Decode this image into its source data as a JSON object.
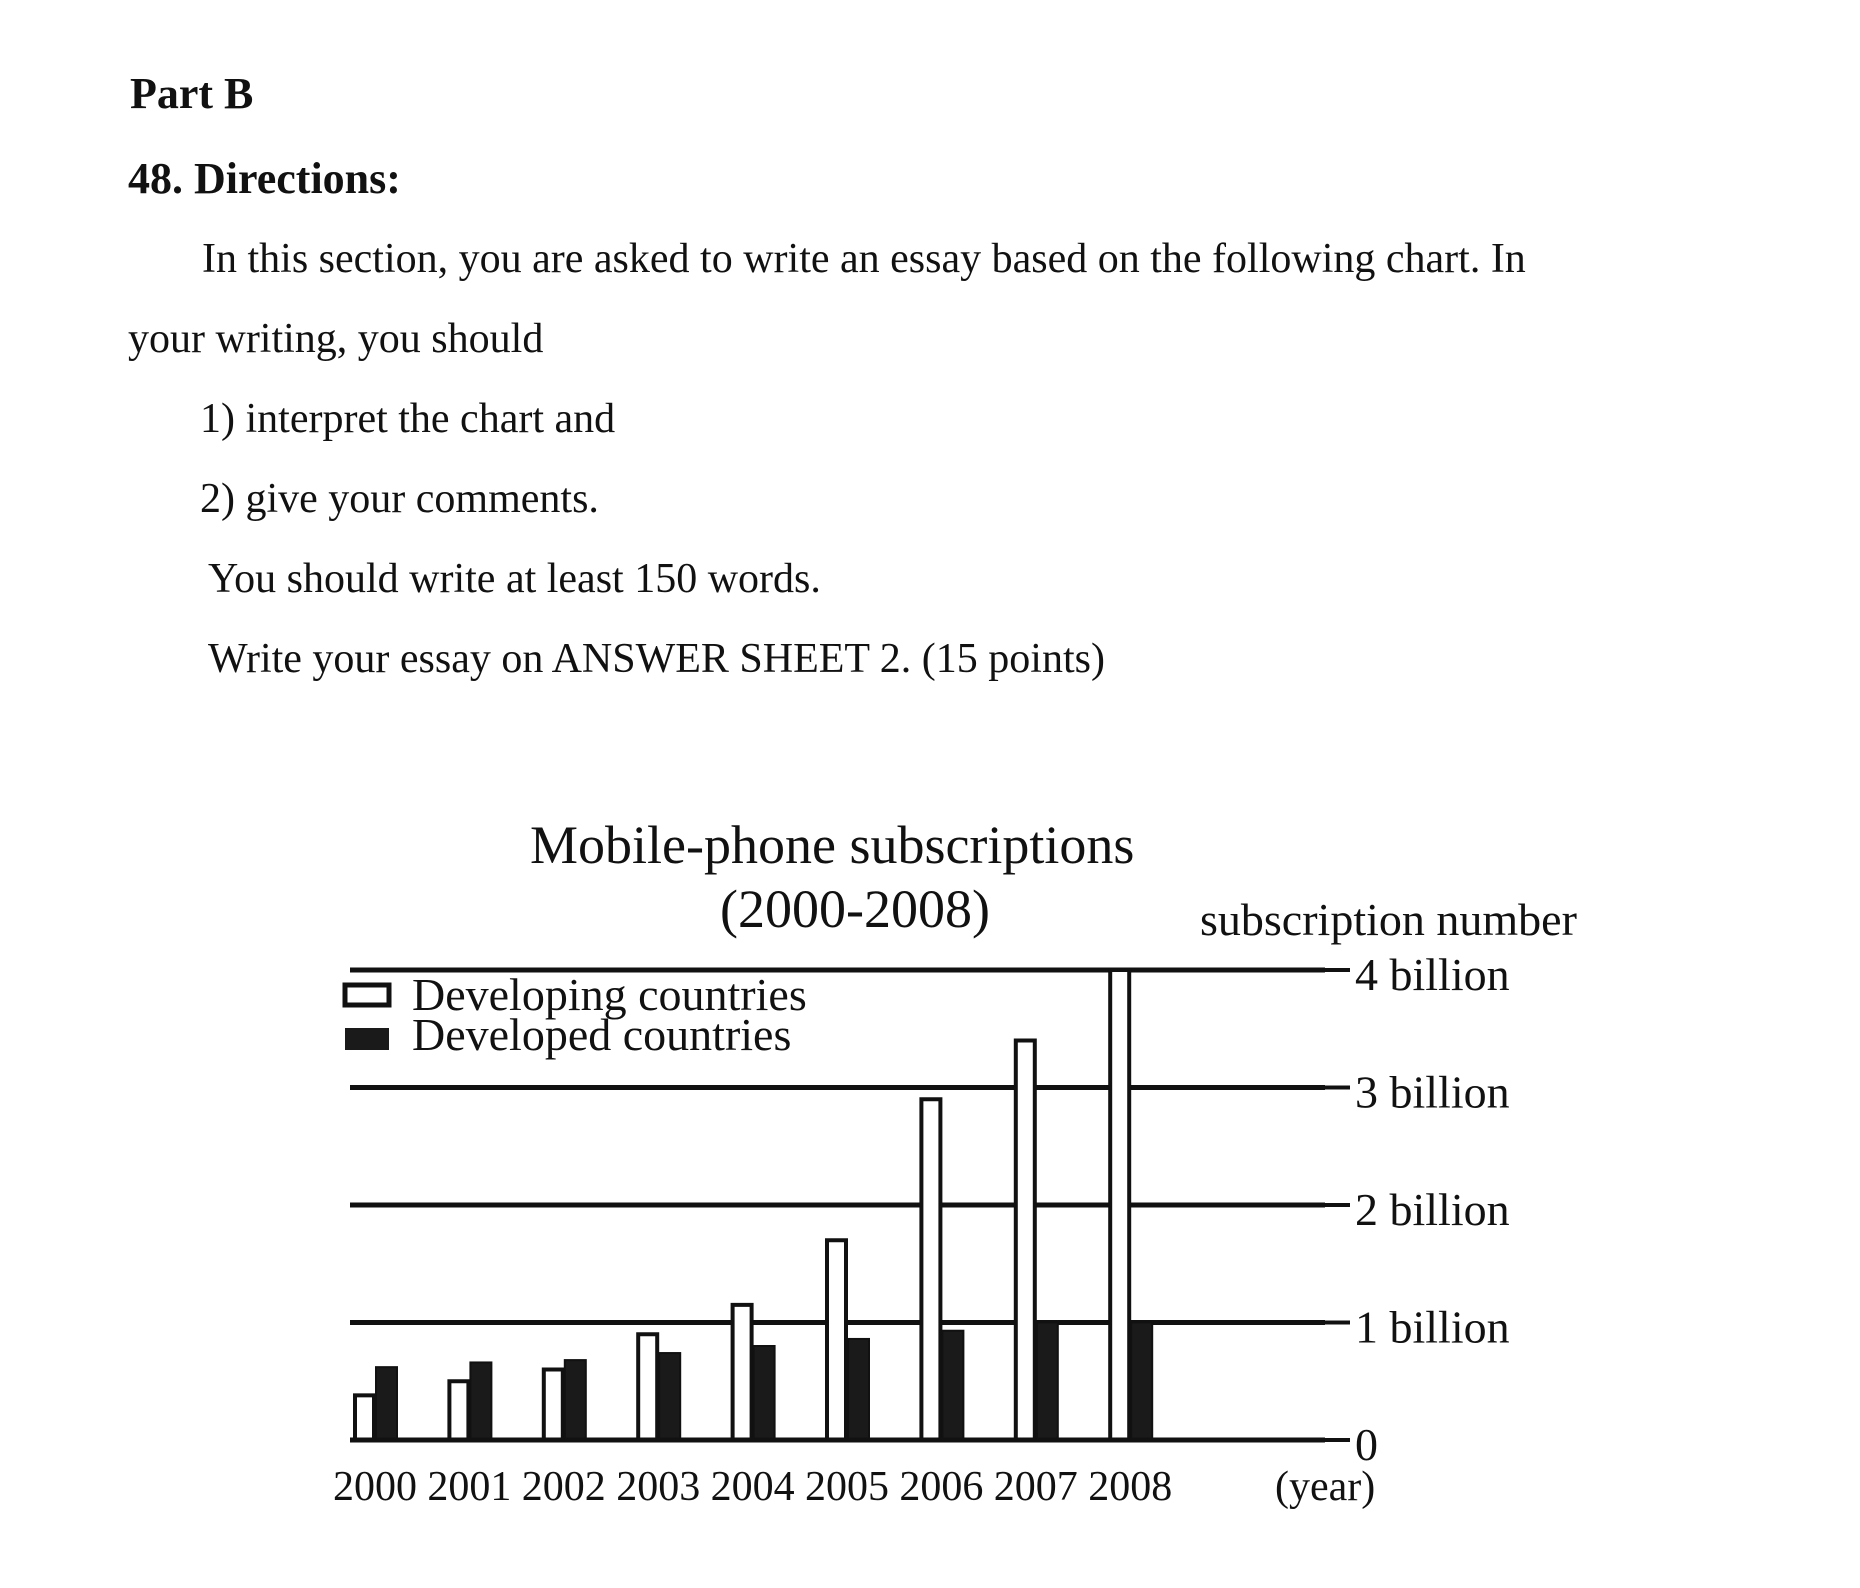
{
  "section": {
    "part": "Part B",
    "question": "48. Directions:"
  },
  "directions": {
    "line1": "In this section, you are asked to write an essay based on the following chart. In",
    "line2": "your writing, you should",
    "item1": "1) interpret the chart and",
    "item2": "2) give your comments.",
    "length": "You should write at least 150 words.",
    "submit": "Write your essay on ANSWER SHEET 2. (15 points)"
  },
  "chart_data": {
    "type": "bar",
    "title": "Mobile-phone subscriptions",
    "subtitle": "(2000-2008)",
    "ylabel": "subscription number",
    "xlabel": "(year)",
    "categories": [
      "2000",
      "2001",
      "2002",
      "2003",
      "2004",
      "2005",
      "2006",
      "2007",
      "2008"
    ],
    "series": [
      {
        "name": "Developing countries",
        "color": "#ffffff",
        "values": [
          0.38,
          0.5,
          0.6,
          0.9,
          1.15,
          1.7,
          2.9,
          3.4,
          4.0
        ]
      },
      {
        "name": "Developed countries",
        "color": "#1a1a1a",
        "values": [
          0.62,
          0.66,
          0.68,
          0.74,
          0.8,
          0.86,
          0.93,
          1.0,
          1.0
        ]
      }
    ],
    "yticks": [
      {
        "value": 0,
        "label": "0"
      },
      {
        "value": 1,
        "label": "1 billion"
      },
      {
        "value": 2,
        "label": "2 billion"
      },
      {
        "value": 3,
        "label": "3 billion"
      },
      {
        "value": 4,
        "label": "4 billion"
      }
    ],
    "ylim": [
      0,
      4
    ],
    "grid": true,
    "legend": "top-left"
  }
}
